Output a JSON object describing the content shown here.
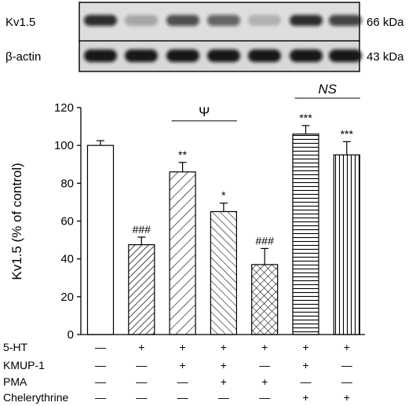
{
  "blot": {
    "rows": [
      {
        "protein": "Kv1.5",
        "size": "66 kDa",
        "band_intensity": [
          0.85,
          0.25,
          0.7,
          0.6,
          0.2,
          0.85,
          0.75
        ]
      },
      {
        "protein": "β-actin",
        "size": "43 kDa",
        "band_intensity": [
          0.95,
          0.95,
          0.95,
          0.95,
          0.95,
          0.95,
          0.95
        ]
      }
    ]
  },
  "chart_data": {
    "type": "bar",
    "ylabel": "Kv1.5 (% of control)",
    "ylim": [
      0,
      120
    ],
    "yticks": [
      "0",
      "20",
      "40",
      "60",
      "80",
      "100",
      "120"
    ],
    "bars": [
      {
        "value": 100,
        "error": 2.5,
        "pattern": "none",
        "label": ""
      },
      {
        "value": 47.5,
        "error": 4,
        "pattern": "hatch-right",
        "label": "###"
      },
      {
        "value": 86,
        "error": 5,
        "pattern": "hatch-right-wide",
        "label": "**"
      },
      {
        "value": 65,
        "error": 4.5,
        "pattern": "hatch-left",
        "label": "*"
      },
      {
        "value": 37,
        "error": 8.5,
        "pattern": "crosshatch",
        "label": "###"
      },
      {
        "value": 106,
        "error": 4.5,
        "pattern": "horizontal",
        "label": "***"
      },
      {
        "value": 95,
        "error": 7,
        "pattern": "vertical",
        "label": "***"
      }
    ],
    "brackets": [
      {
        "from": 2,
        "to": 3,
        "label": "Ψ",
        "italic": false,
        "y": 113
      },
      {
        "from": 5,
        "to": 6,
        "label": "NS",
        "italic": true,
        "y": 125
      }
    ],
    "treatments": [
      {
        "name": "5-HT",
        "signs": [
          "—",
          "+",
          "+",
          "+",
          "+",
          "+",
          "+"
        ]
      },
      {
        "name": "KMUP-1",
        "signs": [
          "—",
          "—",
          "+",
          "+",
          "—",
          "+",
          "—"
        ]
      },
      {
        "name": "PMA",
        "signs": [
          "—",
          "—",
          "—",
          "+",
          "+",
          "—",
          "—"
        ]
      },
      {
        "name": "Chelerythrine",
        "signs": [
          "—",
          "—",
          "—",
          "—",
          "—",
          "+",
          "+"
        ]
      }
    ]
  }
}
